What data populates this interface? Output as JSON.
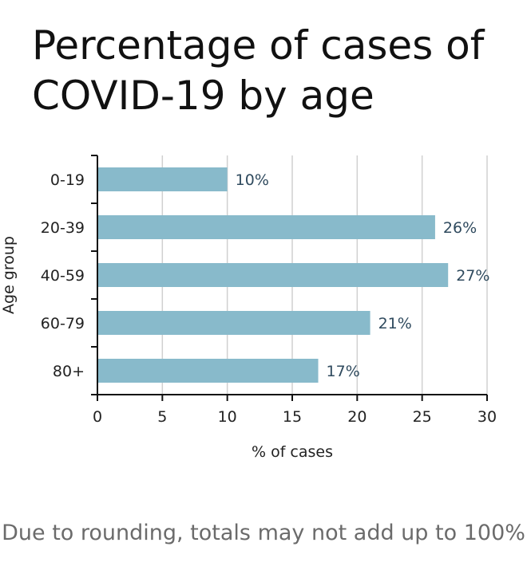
{
  "title": "Percentage of cases of COVID-19 by age",
  "footnote": "Due to rounding, totals may not add up to 100%",
  "colors": {
    "bar": "#88bacb",
    "grid": "#d0d0d0",
    "label": "#2f4a5e",
    "axis": "#111111"
  },
  "chart_data": {
    "type": "bar",
    "orientation": "horizontal",
    "title": "Percentage of cases of COVID-19 by age",
    "xlabel": "% of cases",
    "ylabel": "Age group",
    "categories": [
      "0-19",
      "20-39",
      "40-59",
      "60-79",
      "80+"
    ],
    "values": [
      10,
      26,
      27,
      21,
      17
    ],
    "value_labels": [
      "10%",
      "26%",
      "27%",
      "21%",
      "17%"
    ],
    "xlim": [
      0,
      30
    ],
    "xticks": [
      0,
      5,
      10,
      15,
      20,
      25,
      30
    ],
    "grid": true
  }
}
